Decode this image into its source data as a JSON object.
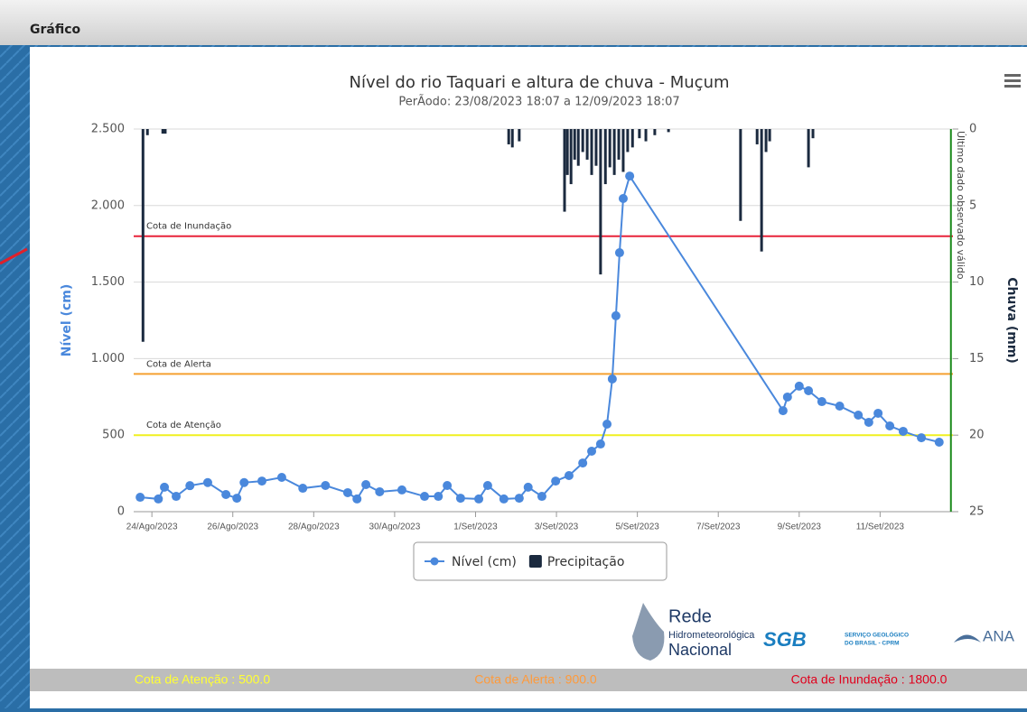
{
  "window": {
    "title": "Gráfico"
  },
  "logos": {
    "rede": [
      "Rede",
      "Hidrometeorológica",
      "Nacional"
    ],
    "sgb": [
      "SGB",
      "SERVIÇO GEOLÓGICO",
      "DO BRASIL - CPRM"
    ],
    "ana": "ANA"
  },
  "footer": [
    "Cota de Atenção : 500.0",
    "Cota de Alerta : 900.0",
    "Cota de Inundação : 1800.0"
  ],
  "chart_data": {
    "type": "line",
    "title": "Nível do rio Taquari e altura de chuva - Muçum",
    "subtitle": "PerÃodo: 23/08/2023 18:07 a 12/09/2023 18:07",
    "y_label": "Nível (cm)",
    "y2_label": "Chuva (mm)",
    "xlim": [
      -0.45,
      19.8
    ],
    "xticks": [
      {
        "value": 0,
        "label": "24/Ago/2023"
      },
      {
        "value": 2,
        "label": "26/Ago/2023"
      },
      {
        "value": 4,
        "label": "28/Ago/2023"
      },
      {
        "value": 6,
        "label": "30/Ago/2023"
      },
      {
        "value": 8,
        "label": "1/Set/2023"
      },
      {
        "value": 10,
        "label": "3/Set/2023"
      },
      {
        "value": 12,
        "label": "5/Set/2023"
      },
      {
        "value": 14,
        "label": "7/Set/2023"
      },
      {
        "value": 16,
        "label": "9/Set/2023"
      },
      {
        "value": 18,
        "label": "11/Set/2023"
      }
    ],
    "ylim": [
      0,
      2500
    ],
    "yticks": [
      0,
      500,
      {
        "value": 1000,
        "label": "1.000"
      },
      {
        "value": 1500,
        "label": "1.500"
      },
      {
        "value": 2000,
        "label": "2.000"
      },
      {
        "value": 2500,
        "label": "2.500"
      }
    ],
    "y2lim": [
      25,
      0
    ],
    "y2ticks": [
      0,
      5,
      10,
      15,
      20,
      25
    ],
    "grid": true,
    "legend": "bottom",
    "thresholds": [
      {
        "label": "Cota de Inundação",
        "value": 1800,
        "color": "#e8233a"
      },
      {
        "label": "Cota de Alerta",
        "value": 900,
        "color": "#f5a030"
      },
      {
        "label": "Cota de Atenção",
        "value": 500,
        "color": "#f0f020"
      }
    ],
    "vline": {
      "x": 19.75,
      "label": "Último dado observado válido",
      "color": "#1a8a1a"
    },
    "series": [
      {
        "name": "Nível (cm)",
        "type": "line",
        "color": "#4a88dc",
        "x": [
          -0.29,
          0.16,
          0.31,
          0.6,
          0.94,
          1.38,
          1.83,
          2.1,
          2.28,
          2.72,
          3.21,
          3.73,
          4.29,
          4.84,
          5.07,
          5.29,
          5.63,
          6.18,
          6.74,
          7.08,
          7.3,
          7.63,
          8.08,
          8.3,
          8.7,
          9.08,
          9.3,
          9.64,
          9.98,
          10.31,
          10.65,
          10.87,
          11.09,
          11.25,
          11.38,
          11.47,
          11.56,
          11.65,
          11.81,
          15.6,
          15.71,
          16.0,
          16.23,
          16.56,
          17.0,
          17.46,
          17.72,
          17.95,
          18.24,
          18.57,
          19.02,
          19.46
        ],
        "values": [
          94,
          83,
          160,
          100,
          170,
          190,
          112,
          88,
          190,
          200,
          224,
          153,
          171,
          124,
          83,
          177,
          130,
          142,
          100,
          100,
          171,
          88,
          83,
          171,
          83,
          88,
          160,
          100,
          200,
          236,
          318,
          395,
          442,
          572,
          867,
          1280,
          1692,
          2046,
          2193,
          660,
          749,
          820,
          790,
          719,
          690,
          631,
          584,
          643,
          560,
          525,
          483,
          454
        ]
      },
      {
        "name": "Precipitação",
        "type": "column",
        "axis": "y2",
        "color": "#1b2a3f",
        "x": [
          -0.22,
          -0.11,
          0.27,
          0.33,
          8.82,
          8.91,
          9.08,
          10.2,
          10.27,
          10.36,
          10.45,
          10.54,
          10.65,
          10.76,
          10.87,
          10.98,
          11.09,
          11.21,
          11.32,
          11.43,
          11.54,
          11.65,
          11.76,
          11.88,
          12.05,
          12.21,
          12.43,
          12.77,
          14.55,
          14.96,
          15.07,
          15.18,
          15.27,
          16.23,
          16.34
        ],
        "values": [
          13.9,
          0.4,
          0.3,
          0.3,
          1.0,
          1.2,
          0.8,
          5.4,
          3.0,
          3.6,
          2.0,
          2.4,
          1.5,
          2.0,
          3.0,
          2.4,
          9.5,
          3.6,
          2.5,
          3.0,
          2.0,
          2.8,
          1.5,
          1.2,
          0.6,
          0.8,
          0.4,
          0.2,
          6.0,
          1.0,
          8.0,
          1.5,
          0.8,
          2.5,
          0.6
        ]
      }
    ]
  }
}
